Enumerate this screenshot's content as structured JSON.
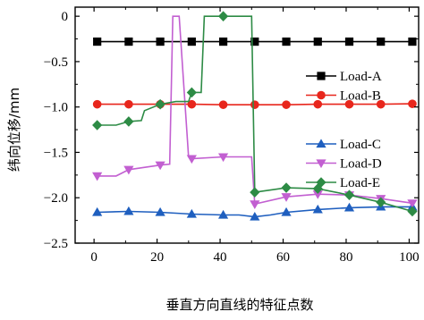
{
  "chart_data": {
    "type": "line",
    "xlabel": "垂直方向直线的特征点数",
    "ylabel": "纬向位移/mm",
    "xlim": [
      -6,
      103
    ],
    "ylim": [
      -2.5,
      0.1
    ],
    "xticks": [
      0,
      20,
      40,
      60,
      80,
      100
    ],
    "yticks": [
      0,
      -0.5,
      -1.0,
      -1.5,
      -2.0,
      -2.5
    ],
    "ytick_labels": [
      "0",
      "−0.5",
      "−1.0",
      "−1.5",
      "−2.0",
      "−2.5"
    ],
    "grid": false,
    "legend_groups": [
      {
        "position": "upper-right",
        "series": [
          "Load-A",
          "Load-B"
        ]
      },
      {
        "position": "middle-right",
        "series": [
          "Load-C",
          "Load-D",
          "Load-E"
        ]
      }
    ],
    "series": [
      {
        "name": "Load-A",
        "color": "#000000",
        "marker": "square",
        "x": [
          1,
          11,
          21,
          31,
          41,
          51,
          61,
          71,
          81,
          91,
          101
        ],
        "y": [
          -0.28,
          -0.28,
          -0.28,
          -0.28,
          -0.28,
          -0.28,
          -0.28,
          -0.28,
          -0.28,
          -0.28,
          -0.28
        ],
        "marker_x": [
          1,
          11,
          21,
          31,
          41,
          51,
          61,
          71,
          81,
          91,
          101
        ]
      },
      {
        "name": "Load-B",
        "color": "#e8261c",
        "marker": "circle",
        "x": [
          1,
          11,
          21,
          31,
          41,
          51,
          61,
          71,
          81,
          91,
          101
        ],
        "y": [
          -0.97,
          -0.97,
          -0.97,
          -0.97,
          -0.975,
          -0.975,
          -0.975,
          -0.97,
          -0.97,
          -0.97,
          -0.965
        ],
        "marker_x": [
          1,
          11,
          21,
          31,
          41,
          51,
          61,
          71,
          81,
          91,
          101
        ]
      },
      {
        "name": "Load-C",
        "color": "#1f5fbf",
        "marker": "triangle-up",
        "x": [
          1,
          11,
          21,
          31,
          41,
          46,
          51,
          56,
          61,
          71,
          81,
          91,
          101
        ],
        "y": [
          -2.16,
          -2.15,
          -2.16,
          -2.18,
          -2.19,
          -2.19,
          -2.21,
          -2.19,
          -2.16,
          -2.13,
          -2.11,
          -2.1,
          -2.1
        ],
        "marker_x": [
          1,
          11,
          21,
          31,
          41,
          51,
          61,
          71,
          81,
          91,
          101
        ]
      },
      {
        "name": "Load-D",
        "color": "#c25fd1",
        "marker": "triangle-down",
        "x": [
          1,
          7,
          11,
          21,
          24,
          25,
          27,
          30,
          31,
          41,
          50,
          51,
          61,
          71,
          81,
          91,
          101
        ],
        "y": [
          -1.76,
          -1.76,
          -1.69,
          -1.64,
          -1.63,
          0.0,
          0.0,
          -1.55,
          -1.57,
          -1.55,
          -1.55,
          -2.07,
          -1.99,
          -1.96,
          -1.97,
          -2.01,
          -2.06
        ],
        "marker_x": [
          1,
          11,
          21,
          31,
          41,
          51,
          61,
          71,
          81,
          91,
          101
        ]
      },
      {
        "name": "Load-E",
        "color": "#2d8b45",
        "marker": "diamond",
        "x": [
          1,
          7,
          11,
          15,
          16,
          21,
          26,
          30,
          31,
          34,
          35,
          41,
          50,
          51,
          61,
          71,
          81,
          91,
          101
        ],
        "y": [
          -1.2,
          -1.2,
          -1.16,
          -1.15,
          -1.04,
          -0.97,
          -0.94,
          -0.94,
          -0.84,
          -0.84,
          0.0,
          0.0,
          0.0,
          -1.94,
          -1.89,
          -1.9,
          -1.97,
          -2.05,
          -2.15
        ],
        "marker_x": [
          1,
          11,
          21,
          31,
          41,
          51,
          61,
          71,
          81,
          91,
          101
        ]
      }
    ]
  }
}
